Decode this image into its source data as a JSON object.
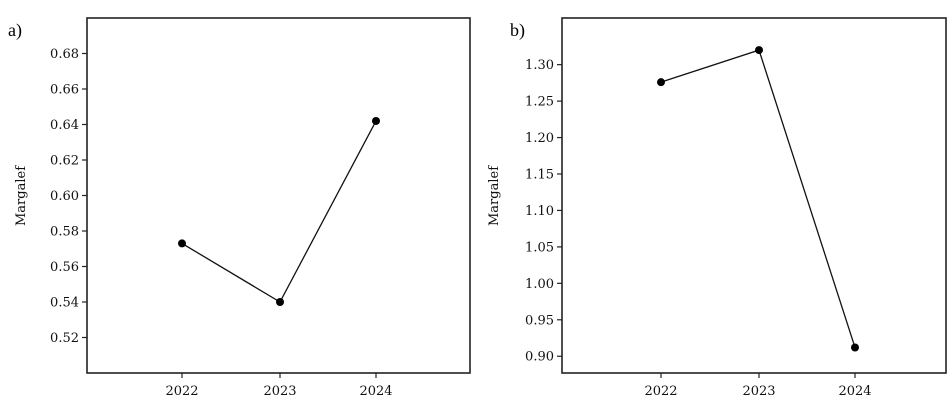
{
  "chart_data": [
    {
      "type": "line",
      "panel": "a)",
      "title": "",
      "xlabel": "",
      "ylabel": "Margalef",
      "categories": [
        "2022",
        "2023",
        "2024"
      ],
      "series": [
        {
          "values": [
            0.573,
            0.54,
            0.642
          ]
        }
      ],
      "ylim": [
        0.5,
        0.7
      ],
      "yticks": [
        "0.52",
        "0.54",
        "0.56",
        "0.58",
        "0.60",
        "0.62",
        "0.64",
        "0.66",
        "0.68"
      ],
      "grid": false,
      "legend": false
    },
    {
      "type": "line",
      "panel": "b)",
      "title": "",
      "xlabel": "",
      "ylabel": "Margalef",
      "categories": [
        "2022",
        "2023",
        "2024"
      ],
      "series": [
        {
          "values": [
            1.276,
            1.32,
            0.912
          ]
        }
      ],
      "ylim": [
        0.877,
        1.364
      ],
      "yticks": [
        "0.90",
        "0.95",
        "1.00",
        "1.05",
        "1.10",
        "1.15",
        "1.20",
        "1.25",
        "1.30"
      ],
      "grid": false,
      "legend": false
    }
  ]
}
